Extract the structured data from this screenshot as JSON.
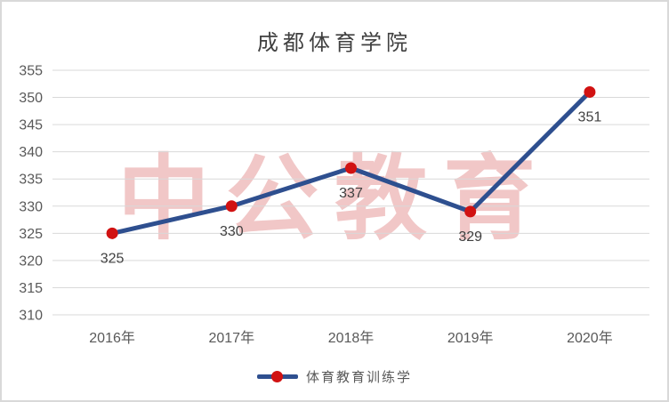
{
  "window": {
    "background": "#ffffff",
    "border_color": "#d9d9d9"
  },
  "chart_data": {
    "type": "line",
    "title": "成都体育学院",
    "categories": [
      "2016年",
      "2017年",
      "2018年",
      "2019年",
      "2020年"
    ],
    "series": [
      {
        "name": "体育教育训练学",
        "values": [
          325,
          330,
          337,
          329,
          351
        ],
        "data_labels": [
          "325",
          "330",
          "337",
          "329",
          "351"
        ],
        "line_color": "#2e4f8f",
        "marker_color": "#d11212"
      }
    ],
    "xlabel": "",
    "ylabel": "",
    "ylim": [
      310,
      355
    ],
    "ytick_step": 5,
    "yticks": [
      310,
      315,
      320,
      325,
      330,
      335,
      340,
      345,
      350,
      355
    ],
    "grid": true,
    "gridline_color": "#d9d9d9",
    "tick_label_color": "#595959",
    "data_label_color": "#404040",
    "title_color": "#404040",
    "legend_position": "bottom"
  },
  "watermark": {
    "text": "中公教育",
    "color": "rgba(205, 55, 55, 0.28)"
  }
}
